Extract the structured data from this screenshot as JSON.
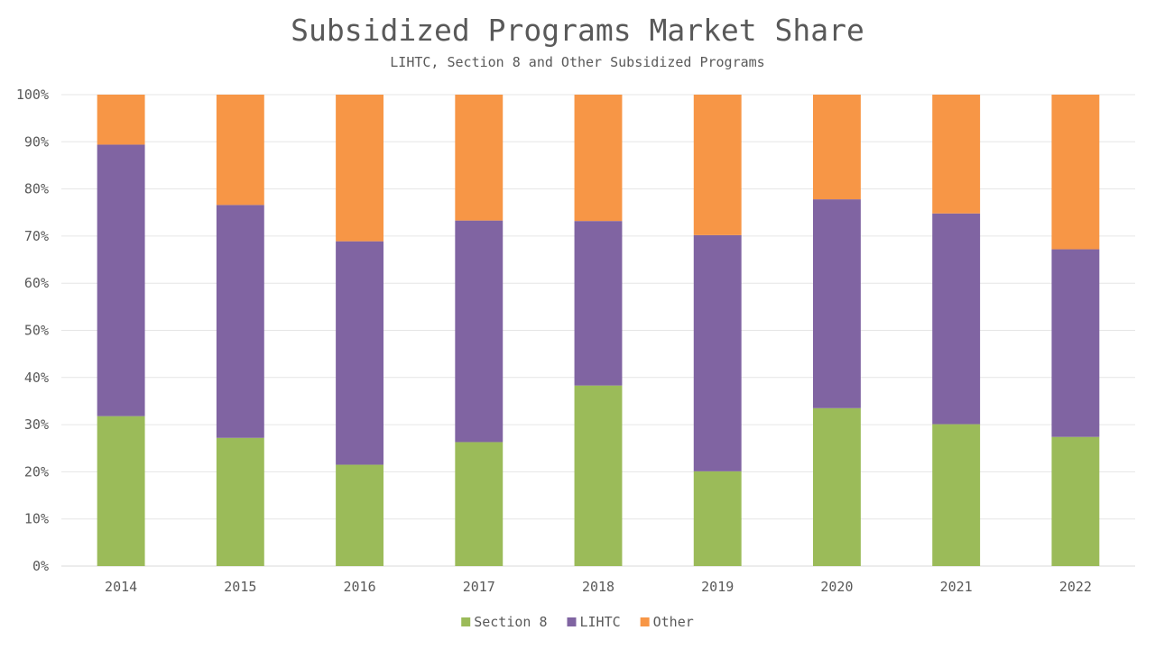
{
  "chart_data": {
    "type": "bar",
    "stacked": true,
    "percent_stacked": true,
    "title": "Subsidized Programs Market Share",
    "subtitle": "LIHTC, Section 8 and Other Subsidized Programs",
    "categories": [
      "2014",
      "2015",
      "2016",
      "2017",
      "2018",
      "2019",
      "2020",
      "2021",
      "2022"
    ],
    "series": [
      {
        "name": "Section 8",
        "color": "#9BBB59",
        "values": [
          31.8,
          27.2,
          21.5,
          26.3,
          38.3,
          20.1,
          33.5,
          30.1,
          27.4
        ]
      },
      {
        "name": "LIHTC",
        "color": "#8064A2",
        "values": [
          57.6,
          49.4,
          47.4,
          47.0,
          34.9,
          50.1,
          44.3,
          44.7,
          39.8
        ]
      },
      {
        "name": "Other",
        "color": "#F79646",
        "values": [
          10.6,
          23.4,
          31.1,
          26.7,
          26.8,
          29.8,
          22.2,
          25.2,
          32.8
        ]
      }
    ],
    "ylim": [
      0,
      100
    ],
    "y_ticks": [
      "0%",
      "10%",
      "20%",
      "30%",
      "40%",
      "50%",
      "60%",
      "70%",
      "80%",
      "90%",
      "100%"
    ],
    "grid": true,
    "legend_position": "bottom"
  }
}
